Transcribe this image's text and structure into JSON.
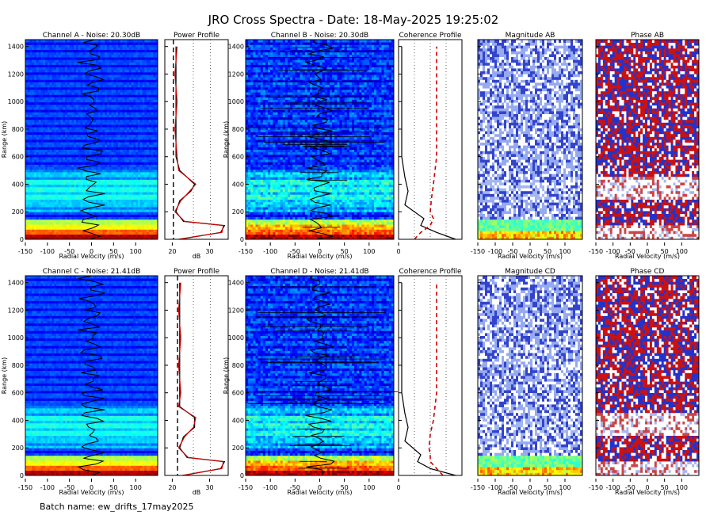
{
  "figure": {
    "title": "JRO Cross Spectra - Date: 18-May-2025 19:25:02",
    "footer": "Batch name: ew_drifts_17may2025"
  },
  "rows": [
    {
      "spectrum1": {
        "title": "Channel A - Noise: 20.30dB",
        "ylabel": "Range (km)",
        "xlabel": "Radial Velocity (m/s)"
      },
      "profile": {
        "title": "Power Profile",
        "xlabel": "dB"
      },
      "spectrum2": {
        "title": "Channel B - Noise: 20.30dB",
        "ylabel": "Range (km)",
        "xlabel": "Radial Velocity (m/s)"
      },
      "coherence": {
        "title": "Coherence Profile"
      },
      "magnitude": {
        "title": "Magnitude AB",
        "xlabel": "Radial Velocity (m/s)"
      },
      "phase": {
        "title": "Phase AB",
        "xlabel": "Radial Velocity (m/s)"
      }
    },
    {
      "spectrum1": {
        "title": "Channel C - Noise: 21.41dB",
        "ylabel": "Range (km)",
        "xlabel": "Radial Velocity (m/s)"
      },
      "profile": {
        "title": "Power Profile",
        "xlabel": "dB"
      },
      "spectrum2": {
        "title": "Channel D - Noise: 21.41dB",
        "ylabel": "Range (km)",
        "xlabel": "Radial Velocity (m/s)"
      },
      "coherence": {
        "title": "Coherence Profile"
      },
      "magnitude": {
        "title": "Magnitude CD",
        "xlabel": "Radial Velocity (m/s)"
      },
      "phase": {
        "title": "Phase CD",
        "xlabel": "Radial Velocity (m/s)"
      }
    }
  ],
  "axes": {
    "range_km": {
      "min": 0,
      "max": 1450,
      "ticks": [
        "0",
        "200",
        "400",
        "600",
        "800",
        "1000",
        "1200",
        "1400"
      ],
      "tick_values": [
        0,
        200,
        400,
        600,
        800,
        1000,
        1200,
        1400
      ]
    },
    "velocity": {
      "min": -150,
      "max": 150,
      "ticks": [
        "-150",
        "-100",
        "-50",
        "0",
        "50",
        "100"
      ],
      "tick_values": [
        -150,
        -100,
        -50,
        0,
        50,
        100
      ]
    },
    "velocity_narrow": {
      "ticks": [
        "-150",
        "-100",
        "-50",
        "0",
        "50",
        "100"
      ],
      "tick_values": [
        -150,
        -100,
        -50,
        0,
        50,
        100
      ]
    },
    "power_db": {
      "min": 18,
      "max": 35,
      "ticks": [
        "20",
        "30"
      ],
      "tick_values": [
        20,
        30
      ]
    },
    "coherence": {
      "min": 0,
      "max": 1,
      "ticks": [
        "0"
      ],
      "tick_values": [
        0
      ]
    }
  },
  "colors": {
    "background": "#ffffff",
    "frame": "#000000",
    "profile_line": "#000000",
    "fit_line": "#cc0000",
    "phase_positive": "#cc1111",
    "phase_negative": "#1122cc"
  },
  "chart_data": [
    {
      "type": "heatmap",
      "panel": "Channel A - Noise: 20.30dB",
      "xlabel": "Radial Velocity (m/s)",
      "ylabel": "Range (km)",
      "xlim": [
        -150,
        150
      ],
      "ylim": [
        0,
        1450
      ],
      "description_series": [
        {
          "name": "Doppler shift",
          "range": [
            0,
            150,
            300,
            450,
            600,
            750,
            900,
            1050,
            1200,
            1350
          ],
          "velocity": [
            0,
            0,
            -5,
            0,
            -10,
            5,
            -15,
            10,
            -10,
            5
          ]
        }
      ]
    },
    {
      "type": "line",
      "panel": "Power Profile (A)",
      "xlabel": "dB",
      "xlim": [
        18,
        35
      ],
      "ylim": [
        0,
        1450
      ],
      "series": [
        {
          "range": [
            0,
            50,
            100,
            130,
            200,
            280,
            350,
            400,
            500,
            600,
            800,
            1000,
            1200,
            1400
          ],
          "values": [
            22,
            33,
            34,
            23,
            21,
            22,
            25,
            26,
            22,
            21,
            21,
            21,
            21,
            21
          ]
        }
      ],
      "noise_level": 20.3
    },
    {
      "type": "heatmap",
      "panel": "Channel B - Noise: 20.30dB",
      "xlabel": "Radial Velocity (m/s)",
      "ylabel": "Range (km)",
      "xlim": [
        -150,
        150
      ],
      "ylim": [
        0,
        1450
      ]
    },
    {
      "type": "line",
      "panel": "Coherence Profile (AB)",
      "xlim": [
        0,
        1
      ],
      "ylim": [
        0,
        1450
      ],
      "series": [
        {
          "range": [
            0,
            50,
            100,
            150,
            250,
            350,
            450,
            600,
            800,
            1000,
            1200,
            1400
          ],
          "values": [
            0.9,
            0.6,
            0.35,
            0.4,
            0.1,
            0.15,
            0.1,
            0.05,
            0.05,
            0.05,
            0.05,
            0.05
          ]
        },
        {
          "range": [
            0,
            50,
            100,
            150,
            200,
            300,
            400,
            600,
            800,
            1000,
            1200,
            1400
          ],
          "values": [
            0.25,
            0.35,
            0.5,
            0.55,
            0.5,
            0.52,
            0.55,
            0.6,
            0.6,
            0.6,
            0.6,
            0.6
          ]
        }
      ]
    },
    {
      "type": "heatmap",
      "panel": "Magnitude AB",
      "xlabel": "Radial Velocity (m/s)",
      "xlim": [
        -150,
        150
      ],
      "ylim": [
        0,
        1450
      ]
    },
    {
      "type": "heatmap",
      "panel": "Phase AB",
      "xlabel": "Radial Velocity (m/s)",
      "xlim": [
        -150,
        150
      ],
      "ylim": [
        0,
        1450
      ]
    },
    {
      "type": "heatmap",
      "panel": "Channel C - Noise: 21.41dB",
      "xlabel": "Radial Velocity (m/s)",
      "ylabel": "Range (km)",
      "xlim": [
        -150,
        150
      ],
      "ylim": [
        0,
        1450
      ]
    },
    {
      "type": "line",
      "panel": "Power Profile (C)",
      "xlabel": "dB",
      "xlim": [
        18,
        35
      ],
      "ylim": [
        0,
        1450
      ],
      "series": [
        {
          "range": [
            0,
            50,
            100,
            130,
            200,
            280,
            350,
            420,
            500,
            600,
            800,
            1000,
            1200,
            1400
          ],
          "values": [
            23,
            33,
            34,
            24,
            22,
            23,
            26,
            26,
            22,
            22,
            22,
            22,
            22,
            22
          ]
        }
      ],
      "noise_level": 21.41
    },
    {
      "type": "heatmap",
      "panel": "Channel D - Noise: 21.41dB",
      "xlabel": "Radial Velocity (m/s)",
      "ylabel": "Range (km)",
      "xlim": [
        -150,
        150
      ],
      "ylim": [
        0,
        1450
      ]
    },
    {
      "type": "line",
      "panel": "Coherence Profile (CD)",
      "xlim": [
        0,
        1
      ],
      "ylim": [
        0,
        1450
      ],
      "series": [
        {
          "range": [
            0,
            50,
            100,
            150,
            250,
            350,
            450,
            600,
            800,
            1000,
            1200,
            1400
          ],
          "values": [
            0.9,
            0.5,
            0.3,
            0.35,
            0.1,
            0.15,
            0.1,
            0.05,
            0.05,
            0.05,
            0.05,
            0.05
          ]
        },
        {
          "range": [
            0,
            50,
            100,
            150,
            200,
            300,
            400,
            600,
            800,
            1000,
            1200,
            1400
          ],
          "values": [
            0.7,
            0.6,
            0.5,
            0.5,
            0.48,
            0.5,
            0.55,
            0.6,
            0.6,
            0.6,
            0.6,
            0.6
          ]
        }
      ]
    },
    {
      "type": "heatmap",
      "panel": "Magnitude CD",
      "xlabel": "Radial Velocity (m/s)",
      "xlim": [
        -150,
        150
      ],
      "ylim": [
        0,
        1450
      ]
    },
    {
      "type": "heatmap",
      "panel": "Phase CD",
      "xlabel": "Radial Velocity (m/s)",
      "xlim": [
        -150,
        150
      ],
      "ylim": [
        0,
        1450
      ]
    }
  ]
}
